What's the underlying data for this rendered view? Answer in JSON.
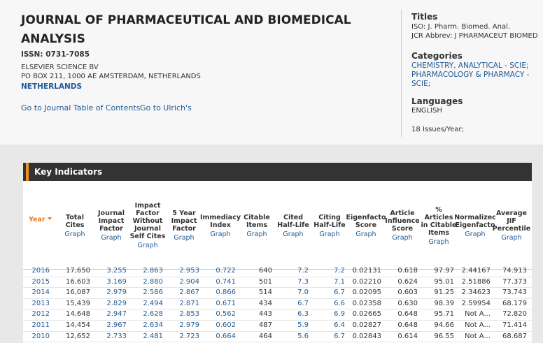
{
  "header": {
    "title": "JOURNAL OF PHARMACEUTICAL AND BIOMEDICAL ANALYSIS",
    "issn": "ISSN: 0731-7085",
    "publisher": "ELSEVIER SCIENCE BV",
    "address": "PO BOX 211, 1000 AE AMSTERDAM, NETHERLANDS",
    "country": "NETHERLANDS",
    "links": [
      "Go to Journal Table of Contents",
      "Go to Ulrich's"
    ]
  },
  "sidebar": {
    "titles_heading": "Titles",
    "iso": "ISO: J. Pharm. Biomed. Anal.",
    "jcr": "JCR Abbrev: J PHARMACEUT BIOMED",
    "categories_heading": "Categories",
    "categories": "CHEMISTRY, ANALYTICAL - SCIE; PHARMACOLOGY & PHARMACY - SCIE;",
    "languages_heading": "Languages",
    "language": "ENGLISH",
    "issues": "18 Issues/Year;"
  },
  "table": {
    "title": "Key Indicators",
    "columns": [
      {
        "label": "Year"
      },
      {
        "label": "Total Cites",
        "graph": "Graph"
      },
      {
        "label": "Journal Impact Factor",
        "graph": "Graph"
      },
      {
        "label": "Impact Factor Without Journal Self Cites",
        "graph": "Graph"
      },
      {
        "label": "5 Year Impact Factor",
        "graph": "Graph"
      },
      {
        "label": "Immediacy Index",
        "graph": "Graph"
      },
      {
        "label": "Citable Items",
        "graph": "Graph"
      },
      {
        "label": "Cited Half-Life",
        "graph": "Graph"
      },
      {
        "label": "Citing Half-Life",
        "graph": "Graph"
      },
      {
        "label": "Eigenfacto Score",
        "graph": "Graph"
      },
      {
        "label": "Article Influence Score",
        "graph": "Graph"
      },
      {
        "label": "% Articles in Citable Items",
        "graph": "Graph"
      },
      {
        "label": "Normalizec Eigenfacto",
        "graph": "Graph"
      },
      {
        "label": "Average JIF Percentile",
        "graph": "Graph"
      }
    ],
    "rows": [
      [
        "2016",
        "17,650",
        "3.255",
        "2.863",
        "2.953",
        "0.722",
        "640",
        "7.2",
        "7.2",
        "0.02131",
        "0.618",
        "97.97",
        "2.44167",
        "74.913"
      ],
      [
        "2015",
        "16,603",
        "3.169",
        "2.880",
        "2.904",
        "0.741",
        "501",
        "7.3",
        "7.1",
        "0.02210",
        "0.624",
        "95.01",
        "2.51886",
        "77.373"
      ],
      [
        "2014",
        "16,087",
        "2.979",
        "2.586",
        "2.867",
        "0.866",
        "514",
        "7.0",
        "6.7",
        "0.02095",
        "0.603",
        "91.25",
        "2.34623",
        "73.743"
      ],
      [
        "2013",
        "15,439",
        "2.829",
        "2.494",
        "2.871",
        "0.671",
        "434",
        "6.7",
        "6.6",
        "0.02358",
        "0.630",
        "98.39",
        "2.59954",
        "68.179"
      ],
      [
        "2012",
        "14,648",
        "2.947",
        "2.628",
        "2.853",
        "0.562",
        "443",
        "6.3",
        "6.9",
        "0.02665",
        "0.648",
        "95.71",
        "Not A...",
        "72.820"
      ],
      [
        "2011",
        "14,454",
        "2.967",
        "2.634",
        "2.979",
        "0.602",
        "487",
        "5.9",
        "6.4",
        "0.02827",
        "0.648",
        "94.66",
        "Not A...",
        "71.414"
      ],
      [
        "2010",
        "12,652",
        "2.733",
        "2.481",
        "2.723",
        "0.664",
        "464",
        "5.6",
        "6.7",
        "0.02843",
        "0.614",
        "96.55",
        "Not A...",
        "68.687"
      ]
    ]
  }
}
